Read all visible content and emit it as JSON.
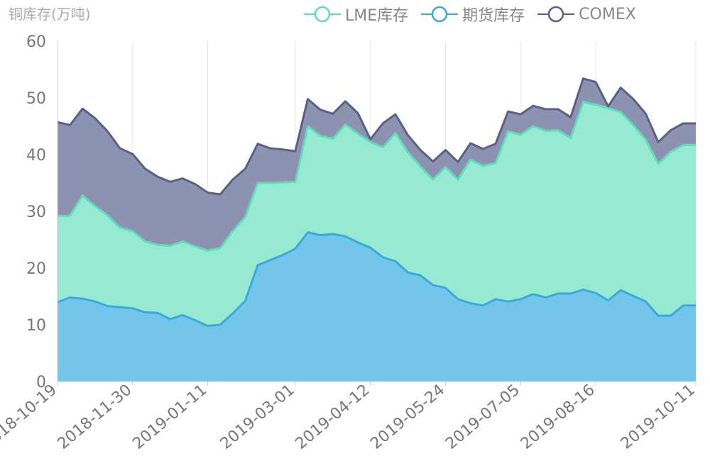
{
  "chart_data": {
    "type": "area",
    "stacked": true,
    "ylabel": "铜库存(万吨)",
    "ylim": [
      0,
      60
    ],
    "yticks": [
      0,
      10,
      20,
      30,
      40,
      50,
      60
    ],
    "grid": true,
    "legend_placement": "top-right",
    "categories": [
      "2018-10-19",
      "2018-10-26",
      "2018-11-02",
      "2018-11-09",
      "2018-11-16",
      "2018-11-23",
      "2018-11-30",
      "2018-12-07",
      "2018-12-14",
      "2018-12-21",
      "2018-12-28",
      "2019-01-04",
      "2019-01-11",
      "2019-01-18",
      "2019-01-25",
      "2019-02-01",
      "2019-02-08",
      "2019-02-15",
      "2019-02-22",
      "2019-03-01",
      "2019-03-08",
      "2019-03-15",
      "2019-03-22",
      "2019-03-29",
      "2019-04-05",
      "2019-04-12",
      "2019-04-19",
      "2019-04-26",
      "2019-05-03",
      "2019-05-10",
      "2019-05-17",
      "2019-05-24",
      "2019-05-31",
      "2019-06-07",
      "2019-06-14",
      "2019-06-21",
      "2019-06-28",
      "2019-07-05",
      "2019-07-12",
      "2019-07-19",
      "2019-07-26",
      "2019-08-02",
      "2019-08-09",
      "2019-08-16",
      "2019-08-23",
      "2019-08-30",
      "2019-09-06",
      "2019-09-13",
      "2019-09-20",
      "2019-09-27",
      "2019-10-04",
      "2019-10-11"
    ],
    "xtick_labels": [
      "2018-10-19",
      "2018-11-30",
      "2019-01-11",
      "2019-03-01",
      "2019-04-12",
      "2019-05-24",
      "2019-07-05",
      "2019-08-16",
      "2019-10-11"
    ],
    "series": [
      {
        "name": "期货库存",
        "color": "#3aa9e0",
        "fill": "#74c5ea",
        "values": [
          14,
          14.8,
          14.6,
          14.1,
          13.3,
          13.1,
          12.9,
          12.2,
          12.1,
          11,
          11.7,
          10.8,
          9.8,
          10,
          12,
          14.2,
          20.5,
          21.4,
          22.3,
          23.4,
          26.3,
          25.8,
          26,
          25.6,
          24.5,
          23.6,
          21.9,
          21.2,
          19.2,
          18.7,
          17,
          16.5,
          14.5,
          13.8,
          13.4,
          14.5,
          14.1,
          14.5,
          15.4,
          14.8,
          15.5,
          15.5,
          16.2,
          15.6,
          14.3,
          16.1,
          15.1,
          14.1,
          11.6,
          11.6,
          13.4,
          13.4
        ]
      },
      {
        "name": "LME库存",
        "color": "#5fdcb8",
        "fill": "#96ead2",
        "values": [
          15.2,
          14.4,
          18.2,
          16.8,
          16,
          14,
          13.6,
          12.5,
          12,
          12.9,
          13,
          13,
          13.3,
          13.5,
          14.5,
          14.8,
          14.5,
          13.6,
          12.8,
          11.8,
          18.7,
          17.5,
          16.8,
          19.7,
          19.2,
          18.6,
          19.4,
          22.6,
          21.2,
          19.2,
          18.6,
          21.3,
          21.1,
          25.3,
          24.6,
          24,
          30,
          29,
          29.6,
          29.4,
          28.8,
          27.4,
          33.1,
          33.2,
          33.9,
          31.4,
          30.1,
          28.5,
          26.8,
          28.9,
          28.3,
          28.3
        ]
      },
      {
        "name": "COMEX",
        "color": "#5a6089",
        "fill": "#8d92b0",
        "values": [
          16.5,
          16,
          15.3,
          15.5,
          14.8,
          14,
          13.6,
          12.8,
          12,
          11.3,
          11.1,
          11,
          10.2,
          9.5,
          9.1,
          8.5,
          6.9,
          6.1,
          5.8,
          5.4,
          4.8,
          4.6,
          4.4,
          4.1,
          3.6,
          0.5,
          4.2,
          3.3,
          3,
          2.9,
          3.2,
          3,
          3.1,
          2.9,
          3,
          3.4,
          3.5,
          3.6,
          3.6,
          3.8,
          3.7,
          3.7,
          4.1,
          4,
          0.3,
          4.3,
          4.6,
          4.6,
          3.8,
          3.8,
          3.8,
          3.8
        ]
      }
    ]
  }
}
